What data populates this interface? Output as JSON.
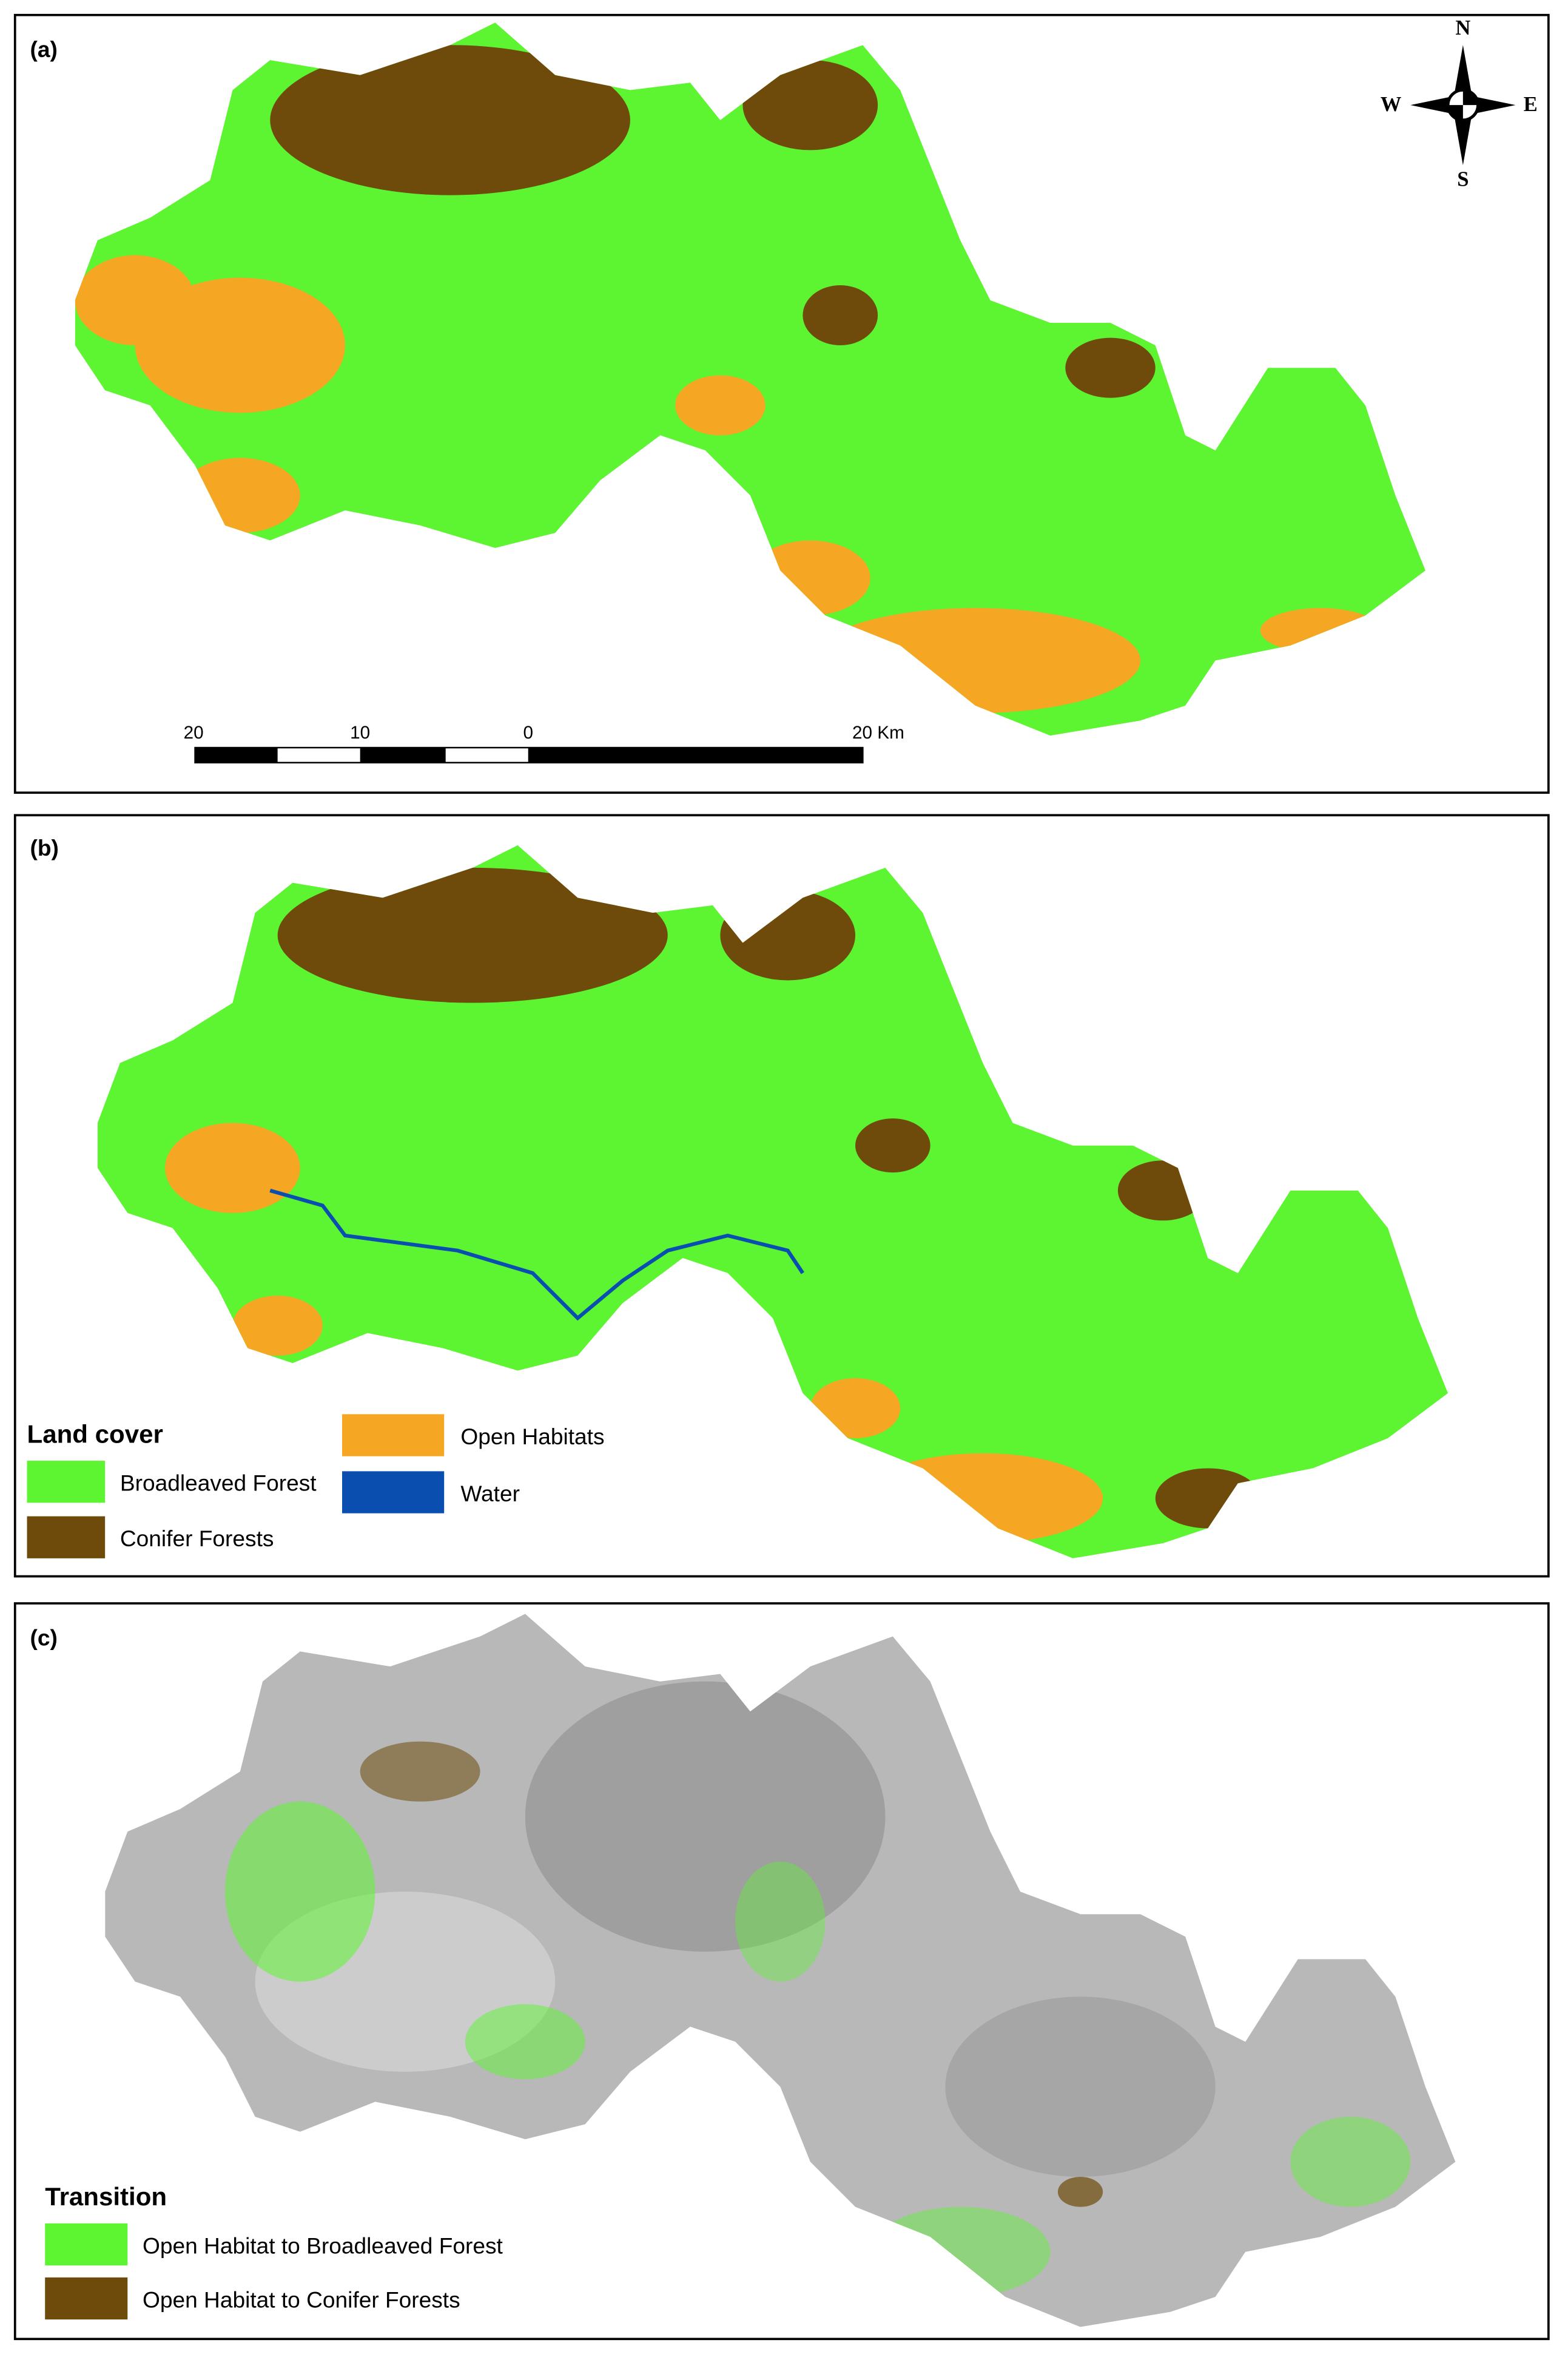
{
  "panels": [
    {
      "label": "(a)"
    },
    {
      "label": "(b)",
      "legend": {
        "title": "Land cover",
        "items": [
          "Broadleaved Forest",
          "Conifer Forests",
          "Open Habitats",
          "Water"
        ]
      }
    },
    {
      "label": "(c)",
      "legend": {
        "title": "Transition",
        "items": [
          "Open Habitat to Broadleaved Forest",
          "Open Habitat to Conifer Forests"
        ]
      }
    }
  ],
  "compass": {
    "n": "N",
    "s": "S",
    "w": "W",
    "e": "E"
  },
  "scale_bar": {
    "labels": [
      "20",
      "10",
      "0",
      "20 Km"
    ]
  }
}
